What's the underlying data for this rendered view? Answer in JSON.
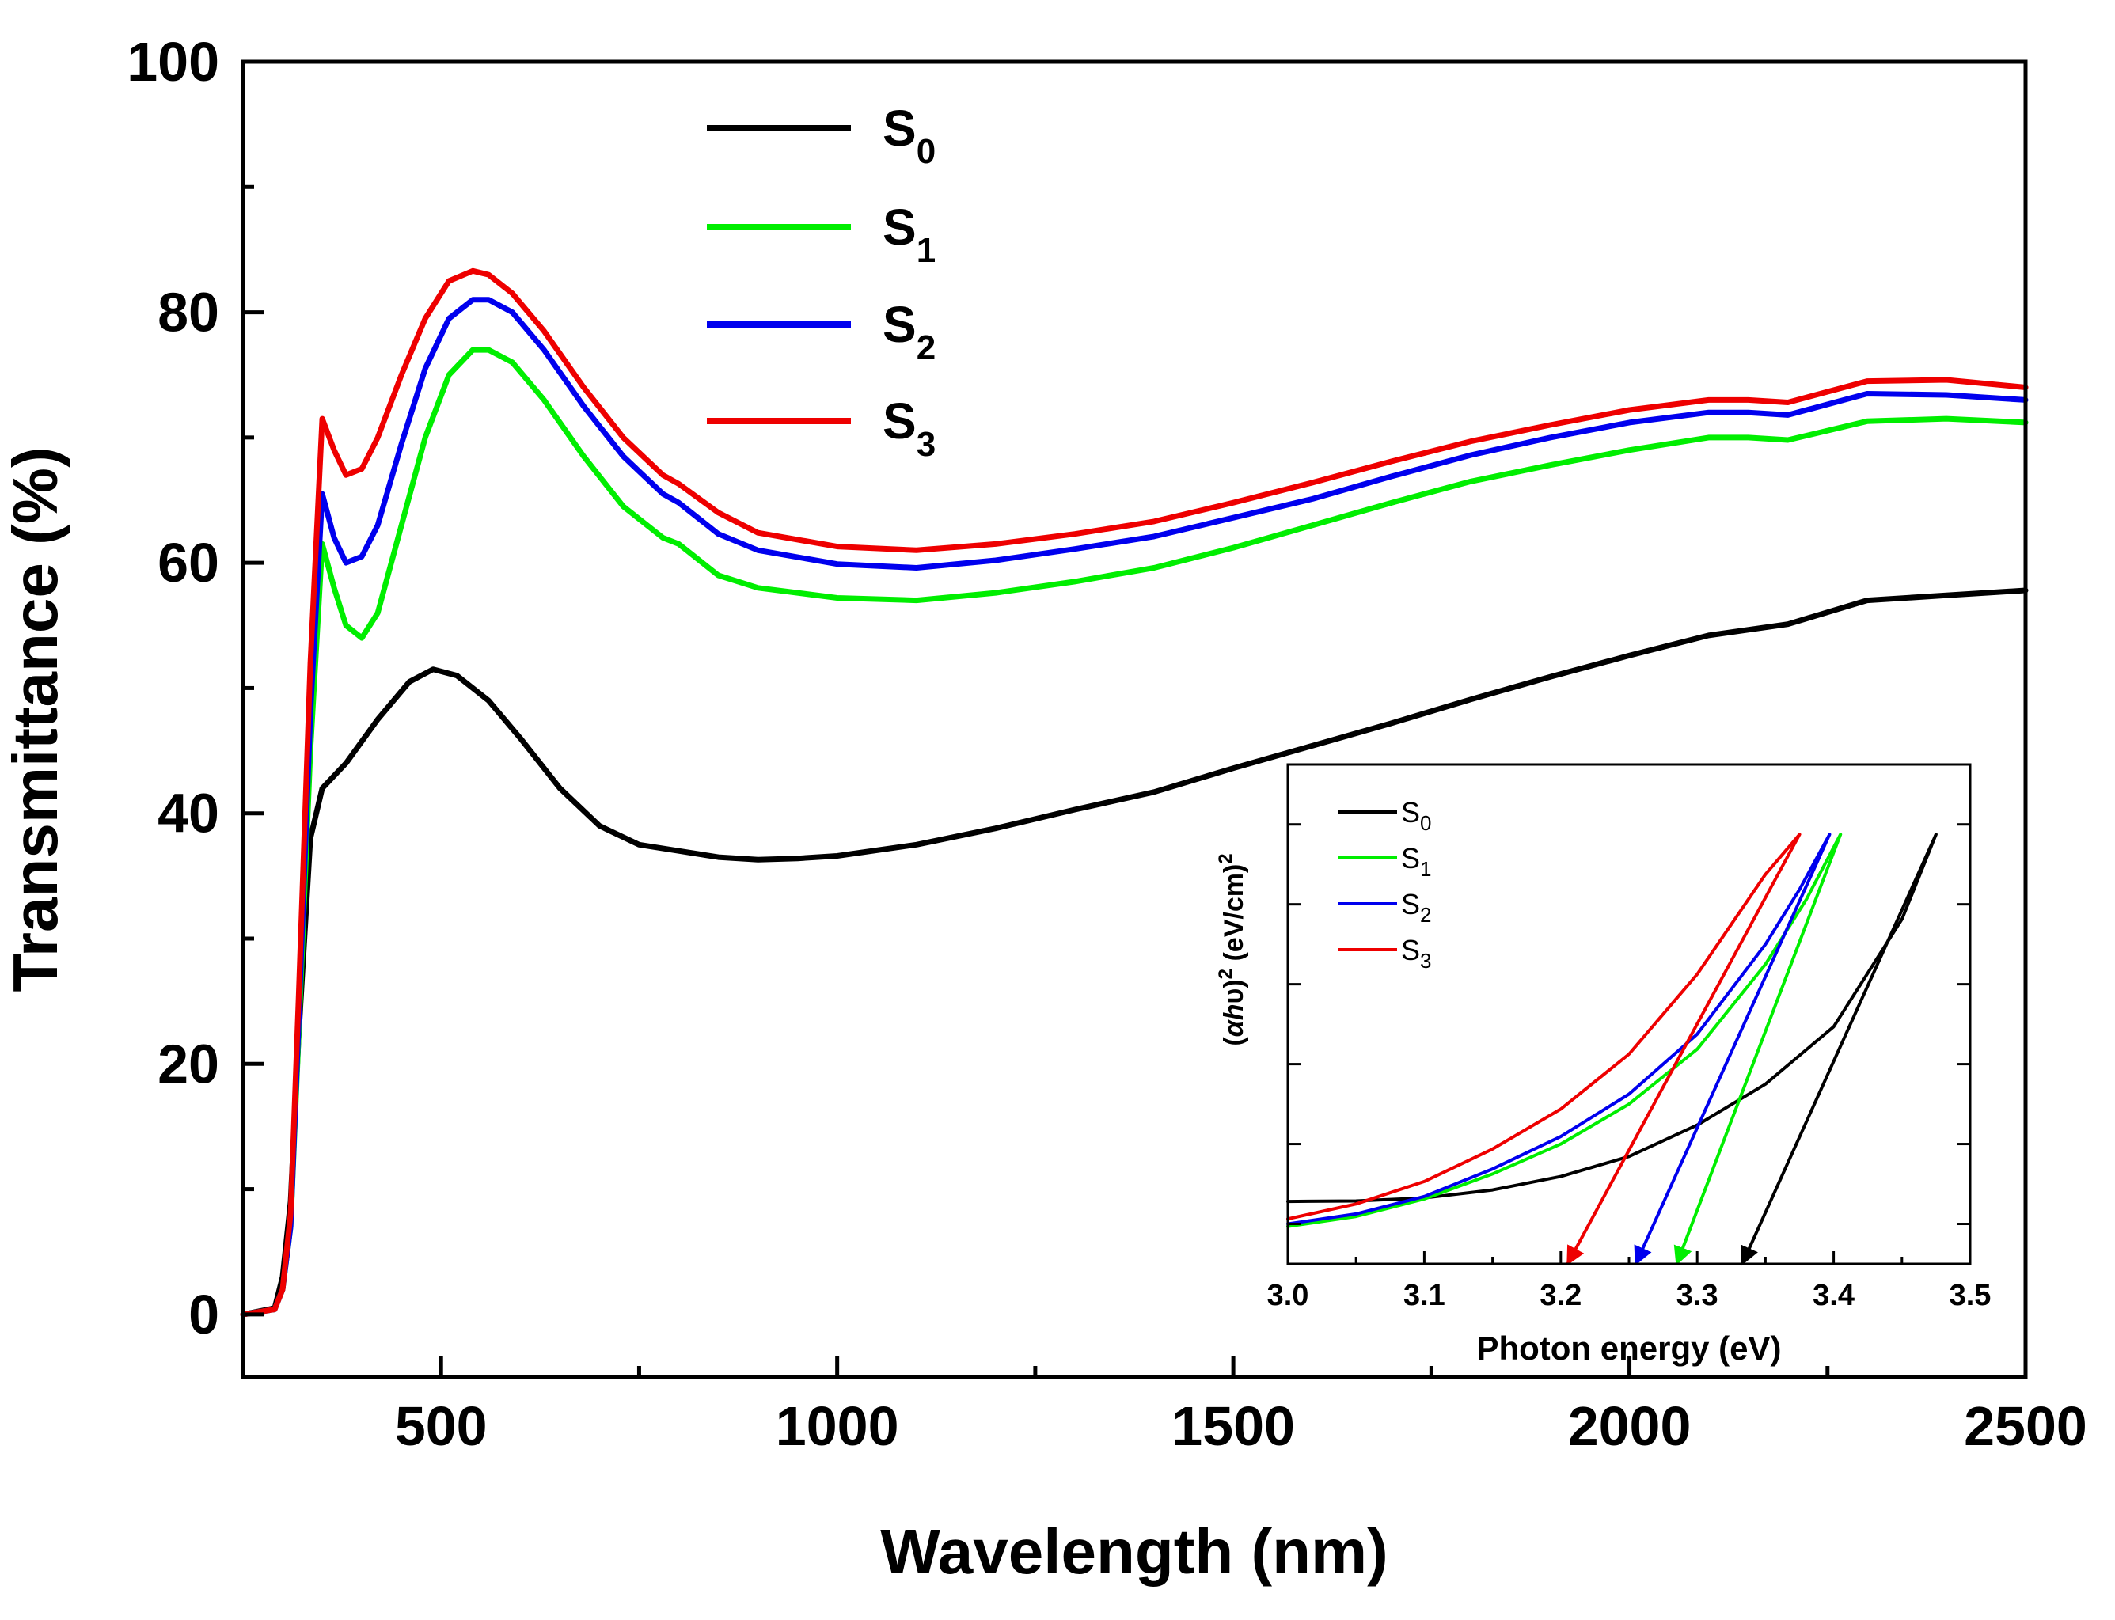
{
  "colors": {
    "S0": "#000000",
    "S1": "#00ee00",
    "S2": "#0000ee",
    "S3": "#ee0000"
  },
  "chart_data": [
    {
      "type": "line",
      "title": "",
      "xlabel": "Wavelength (nm)",
      "ylabel": "Transmittance (%)",
      "xlim": [
        250,
        2500
      ],
      "ylim": [
        -5,
        100
      ],
      "x_ticks": [
        500,
        1000,
        1500,
        2000,
        2500
      ],
      "y_ticks": [
        0,
        20,
        40,
        60,
        80,
        100
      ],
      "grid": false,
      "legend_position": "top-center",
      "legend": [
        {
          "base": "S",
          "sub": "0",
          "color_key": "S0"
        },
        {
          "base": "S",
          "sub": "1",
          "color_key": "S1"
        },
        {
          "base": "S",
          "sub": "2",
          "color_key": "S2"
        },
        {
          "base": "S",
          "sub": "3",
          "color_key": "S3"
        }
      ],
      "series": [
        {
          "name": "S0",
          "color_key": "S0",
          "x": [
            250,
            290,
            300,
            310,
            320,
            335,
            350,
            380,
            420,
            460,
            490,
            520,
            560,
            600,
            650,
            700,
            750,
            800,
            850,
            900,
            950,
            1000,
            1100,
            1200,
            1300,
            1400,
            1500,
            1600,
            1700,
            1800,
            1900,
            2000,
            2100,
            2200,
            2300,
            2400,
            2500
          ],
          "y": [
            0,
            0.5,
            3,
            9,
            22,
            38,
            42,
            44,
            47.5,
            50.5,
            51.5,
            51,
            49,
            46,
            42,
            39,
            37.5,
            37,
            36.5,
            36.3,
            36.4,
            36.6,
            37.5,
            38.8,
            40.3,
            41.7,
            43.6,
            45.4,
            47.2,
            49.1,
            50.9,
            52.6,
            54.2,
            55.1,
            57,
            57.4,
            57.8
          ]
        },
        {
          "name": "S1",
          "color_key": "S1",
          "x": [
            250,
            290,
            300,
            310,
            320,
            335,
            350,
            365,
            380,
            400,
            420,
            450,
            480,
            510,
            540,
            560,
            590,
            630,
            680,
            730,
            780,
            800,
            850,
            900,
            1000,
            1100,
            1200,
            1300,
            1400,
            1500,
            1600,
            1700,
            1800,
            1900,
            2000,
            2100,
            2150,
            2200,
            2300,
            2400,
            2500
          ],
          "y": [
            0,
            0.4,
            2,
            7,
            22,
            45,
            61.5,
            58,
            55,
            54,
            56,
            63,
            70,
            75,
            77,
            77,
            76,
            73,
            68.5,
            64.5,
            62,
            61.5,
            59,
            58,
            57.2,
            57,
            57.6,
            58.5,
            59.6,
            61.2,
            63,
            64.8,
            66.5,
            67.8,
            69,
            70,
            70,
            69.8,
            71.3,
            71.5,
            71.2
          ]
        },
        {
          "name": "S2",
          "color_key": "S2",
          "x": [
            250,
            290,
            300,
            310,
            320,
            335,
            350,
            365,
            380,
            400,
            420,
            450,
            480,
            510,
            540,
            560,
            590,
            630,
            680,
            730,
            780,
            800,
            850,
            900,
            1000,
            1100,
            1200,
            1300,
            1400,
            1500,
            1600,
            1700,
            1800,
            1900,
            2000,
            2100,
            2150,
            2200,
            2300,
            2400,
            2500
          ],
          "y": [
            0,
            0.4,
            2,
            7,
            23,
            48,
            65.5,
            62,
            60,
            60.5,
            63,
            69.5,
            75.5,
            79.5,
            81,
            81,
            80,
            77,
            72.5,
            68.5,
            65.5,
            64.8,
            62.3,
            61,
            59.9,
            59.6,
            60.2,
            61.1,
            62.1,
            63.6,
            65.1,
            66.9,
            68.6,
            70,
            71.2,
            72,
            72,
            71.8,
            73.5,
            73.4,
            73
          ]
        },
        {
          "name": "S3",
          "color_key": "S3",
          "x": [
            250,
            290,
            300,
            310,
            320,
            335,
            350,
            365,
            380,
            400,
            420,
            450,
            480,
            510,
            540,
            560,
            590,
            630,
            680,
            730,
            780,
            800,
            850,
            900,
            1000,
            1100,
            1200,
            1300,
            1400,
            1500,
            1600,
            1700,
            1800,
            1900,
            2000,
            2100,
            2150,
            2200,
            2300,
            2400,
            2500
          ],
          "y": [
            0,
            0.4,
            2,
            8,
            25,
            52,
            71.5,
            69,
            67,
            67.5,
            70,
            75,
            79.5,
            82.5,
            83.3,
            83,
            81.5,
            78.5,
            74,
            70,
            67,
            66.3,
            64,
            62.4,
            61.3,
            61,
            61.5,
            62.3,
            63.3,
            64.8,
            66.4,
            68.1,
            69.7,
            71,
            72.2,
            73,
            73,
            72.8,
            74.5,
            74.6,
            74
          ]
        }
      ]
    },
    {
      "type": "line",
      "title": "",
      "xlabel": "Photon energy (eV)",
      "ylabel": "(αhυ)² (eV/cm)²",
      "ylabel_parts": {
        "open": "(",
        "alpha": "α",
        "h": "h",
        "nu": "υ",
        "close": ")",
        "sup1": "2",
        "units": " (eV/cm)",
        "sup2": "2"
      },
      "xlim": [
        3.0,
        3.5
      ],
      "ylim": [
        0,
        1
      ],
      "x_ticks": [
        3.0,
        3.1,
        3.2,
        3.3,
        3.4,
        3.5
      ],
      "x_tick_labels": [
        "3.0",
        "3.1",
        "3.2",
        "3.3",
        "3.4",
        "3.5"
      ],
      "y_ticks_unlabeled": 6,
      "grid": false,
      "legend_position": "top-left",
      "legend": [
        {
          "base": "S",
          "sub": "0",
          "color_key": "S0"
        },
        {
          "base": "S",
          "sub": "1",
          "color_key": "S1"
        },
        {
          "base": "S",
          "sub": "2",
          "color_key": "S2"
        },
        {
          "base": "S",
          "sub": "3",
          "color_key": "S3"
        }
      ],
      "series": [
        {
          "name": "S0",
          "color_key": "S0",
          "x": [
            3.0,
            3.05,
            3.1,
            3.15,
            3.2,
            3.25,
            3.3,
            3.35,
            3.4,
            3.45,
            3.475
          ],
          "y": [
            0.125,
            0.126,
            0.132,
            0.148,
            0.175,
            0.215,
            0.278,
            0.36,
            0.475,
            0.69,
            0.86
          ]
        },
        {
          "name": "S1",
          "color_key": "S1",
          "x": [
            3.0,
            3.05,
            3.1,
            3.15,
            3.2,
            3.25,
            3.3,
            3.35,
            3.38,
            3.405
          ],
          "y": [
            0.075,
            0.095,
            0.13,
            0.18,
            0.24,
            0.32,
            0.43,
            0.6,
            0.73,
            0.86
          ]
        },
        {
          "name": "S2",
          "color_key": "S2",
          "x": [
            3.0,
            3.05,
            3.1,
            3.15,
            3.2,
            3.25,
            3.3,
            3.35,
            3.375,
            3.397
          ],
          "y": [
            0.08,
            0.1,
            0.135,
            0.19,
            0.255,
            0.34,
            0.46,
            0.64,
            0.75,
            0.86
          ]
        },
        {
          "name": "S3",
          "color_key": "S3",
          "x": [
            3.0,
            3.05,
            3.1,
            3.15,
            3.2,
            3.25,
            3.3,
            3.35,
            3.375
          ],
          "y": [
            0.09,
            0.12,
            0.165,
            0.23,
            0.31,
            0.42,
            0.58,
            0.78,
            0.86
          ]
        }
      ],
      "tangent_lines": [
        {
          "name": "S0",
          "color_key": "S0",
          "from": [
            3.475,
            0.86
          ],
          "to": [
            3.333,
            0.0
          ]
        },
        {
          "name": "S1",
          "color_key": "S1",
          "from": [
            3.405,
            0.86
          ],
          "to": [
            3.285,
            0.0
          ]
        },
        {
          "name": "S2",
          "color_key": "S2",
          "from": [
            3.397,
            0.86
          ],
          "to": [
            3.255,
            0.0
          ]
        },
        {
          "name": "S3",
          "color_key": "S3",
          "from": [
            3.375,
            0.86
          ],
          "to": [
            3.205,
            0.0
          ]
        }
      ]
    }
  ]
}
